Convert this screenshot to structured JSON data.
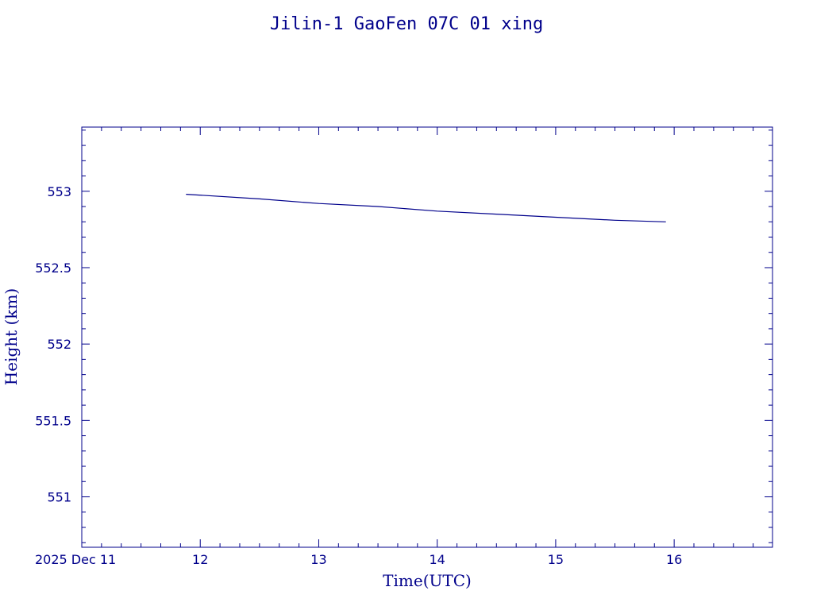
{
  "chart_data": {
    "type": "line",
    "title": "Jilin-1 GaoFen 07C 01 xing",
    "xlabel": "Time(UTC)",
    "ylabel": "Height (km)",
    "date_label": "2025 Dec 11",
    "x_unit": "hour (UTC), 2025 Dec 11",
    "xlim": [
      11.0,
      16.83
    ],
    "ylim": [
      550.67,
      553.42
    ],
    "x_major_ticks": [
      12,
      13,
      14,
      15,
      16
    ],
    "x_tick_labels": [
      "12",
      "13",
      "14",
      "15",
      "16"
    ],
    "y_major_ticks": [
      551,
      551.5,
      552,
      552.5,
      553
    ],
    "y_tick_labels": [
      "551",
      "551.5",
      "552",
      "552.5",
      "553"
    ],
    "grid": false,
    "color": "#00008b",
    "series": [
      {
        "x": [
          11.88,
          12.5,
          13.0,
          13.5,
          14.0,
          14.5,
          15.0,
          15.5,
          15.93
        ],
        "y": [
          552.98,
          552.95,
          552.92,
          552.9,
          552.87,
          552.85,
          552.83,
          552.81,
          552.8
        ]
      }
    ]
  }
}
